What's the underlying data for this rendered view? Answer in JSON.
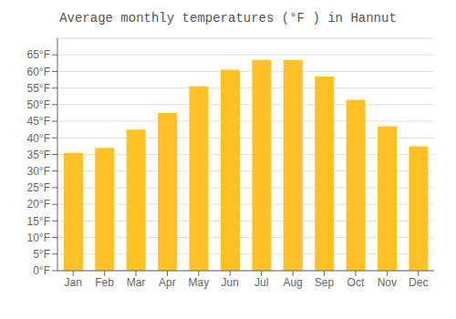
{
  "chart_data": {
    "type": "bar",
    "title": "Average monthly temperatures (°F ) in Hannut",
    "categories": [
      "Jan",
      "Feb",
      "Mar",
      "Apr",
      "May",
      "Jun",
      "Jul",
      "Aug",
      "Sep",
      "Oct",
      "Nov",
      "Dec"
    ],
    "values": [
      35.5,
      37.0,
      42.5,
      47.5,
      55.5,
      60.5,
      63.5,
      63.5,
      58.5,
      51.5,
      43.5,
      37.5
    ],
    "color": "#FFC125",
    "ylim": [
      0,
      70
    ],
    "yticks": [
      {
        "value": 0,
        "label": "0°F"
      },
      {
        "value": 5,
        "label": "5°F"
      },
      {
        "value": 10,
        "label": "10°F"
      },
      {
        "value": 15,
        "label": "15°F"
      },
      {
        "value": 20,
        "label": "20°F"
      },
      {
        "value": 25,
        "label": "25°F"
      },
      {
        "value": 30,
        "label": "30°F"
      },
      {
        "value": 35,
        "label": "35°F"
      },
      {
        "value": 40,
        "label": "40°F"
      },
      {
        "value": 45,
        "label": "45°F"
      },
      {
        "value": 50,
        "label": "50°F"
      },
      {
        "value": 55,
        "label": "55°F"
      },
      {
        "value": 60,
        "label": "60°F"
      },
      {
        "value": 65,
        "label": "65°F"
      }
    ],
    "grid": true
  }
}
